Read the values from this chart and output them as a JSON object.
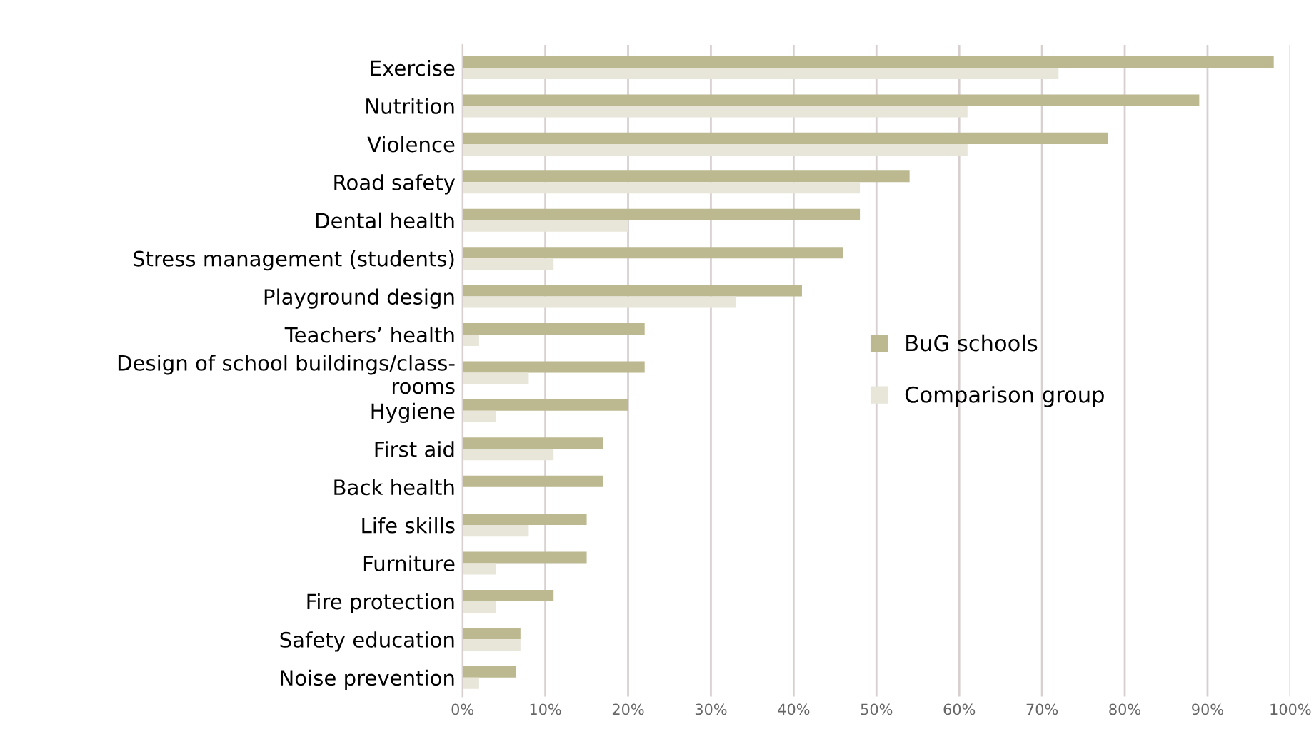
{
  "chart_data": {
    "type": "bar",
    "orientation": "horizontal",
    "categories": [
      "Exercise",
      "Nutrition",
      "Violence",
      "Road safety",
      "Dental health",
      "Stress management (students)",
      "Playground design",
      "Teachers’ health",
      "Design of school buildings/class-\nrooms",
      "Hygiene",
      "First aid",
      "Back health",
      "Life skills",
      "Furniture",
      "Fire protection",
      "Safety education",
      "Noise prevention"
    ],
    "series": [
      {
        "name": "BuG schools",
        "color": "#bcb88f",
        "values": [
          98,
          89,
          78,
          54,
          48,
          46,
          41,
          22,
          22,
          20,
          17,
          17,
          15,
          15,
          11,
          7,
          6.5
        ]
      },
      {
        "name": "Comparison group",
        "color": "#e8e6d9",
        "values": [
          72,
          61,
          61,
          48,
          20,
          11,
          33,
          2,
          8,
          4,
          11,
          null,
          8,
          4,
          4,
          7,
          2
        ]
      }
    ],
    "xlim": [
      0,
      100
    ],
    "xticks": [
      {
        "value": 0,
        "label": "0%"
      },
      {
        "value": 10,
        "label": "10%"
      },
      {
        "value": 20,
        "label": "20%"
      },
      {
        "value": 30,
        "label": "30%"
      },
      {
        "value": 40,
        "label": "40%"
      },
      {
        "value": 50,
        "label": "50%"
      },
      {
        "value": 60,
        "label": "60%"
      },
      {
        "value": 70,
        "label": "70%"
      },
      {
        "value": 80,
        "label": "80%"
      },
      {
        "value": 90,
        "label": "90%"
      },
      {
        "value": 100,
        "label": "100%"
      }
    ],
    "grid": "x",
    "legend": "right"
  }
}
